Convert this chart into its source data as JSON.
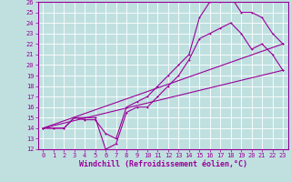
{
  "xlabel": "Windchill (Refroidissement éolien,°C)",
  "xlim": [
    -0.5,
    23.5
  ],
  "ylim": [
    12,
    26
  ],
  "xticks": [
    0,
    1,
    2,
    3,
    4,
    5,
    6,
    7,
    8,
    9,
    10,
    11,
    12,
    13,
    14,
    15,
    16,
    17,
    18,
    19,
    20,
    21,
    22,
    23
  ],
  "yticks": [
    12,
    13,
    14,
    15,
    16,
    17,
    18,
    19,
    20,
    21,
    22,
    23,
    24,
    25,
    26
  ],
  "bg_color": "#c0e0e0",
  "line_color": "#990099",
  "grid_color": "#ffffff",
  "series1_x": [
    0,
    1,
    2,
    3,
    4,
    5,
    6,
    7,
    8,
    9,
    10,
    11,
    12,
    13,
    14,
    15,
    16,
    17,
    18,
    19,
    20,
    21,
    22,
    23
  ],
  "series1_y": [
    14,
    14,
    14,
    15,
    15,
    15,
    12,
    12.5,
    15.5,
    16,
    16,
    17,
    18,
    19,
    20.5,
    22.5,
    23,
    23.5,
    24,
    23,
    21.5,
    22,
    21,
    19.5
  ],
  "series2_x": [
    0,
    1,
    2,
    3,
    4,
    5,
    6,
    7,
    8,
    9,
    10,
    11,
    12,
    13,
    14,
    15,
    16,
    17,
    18,
    19,
    20,
    21,
    22,
    23
  ],
  "series2_y": [
    14,
    14,
    14,
    15,
    14.8,
    14.8,
    13.5,
    13,
    16,
    16.5,
    17,
    18,
    19,
    20,
    21,
    24.5,
    26,
    26,
    26.5,
    25,
    25,
    24.5,
    23,
    22
  ],
  "series3_x": [
    0,
    23
  ],
  "series3_y": [
    14,
    19.5
  ],
  "series4_x": [
    0,
    23
  ],
  "series4_y": [
    14,
    22
  ],
  "tick_fontsize": 5.0,
  "label_fontsize": 6.0
}
